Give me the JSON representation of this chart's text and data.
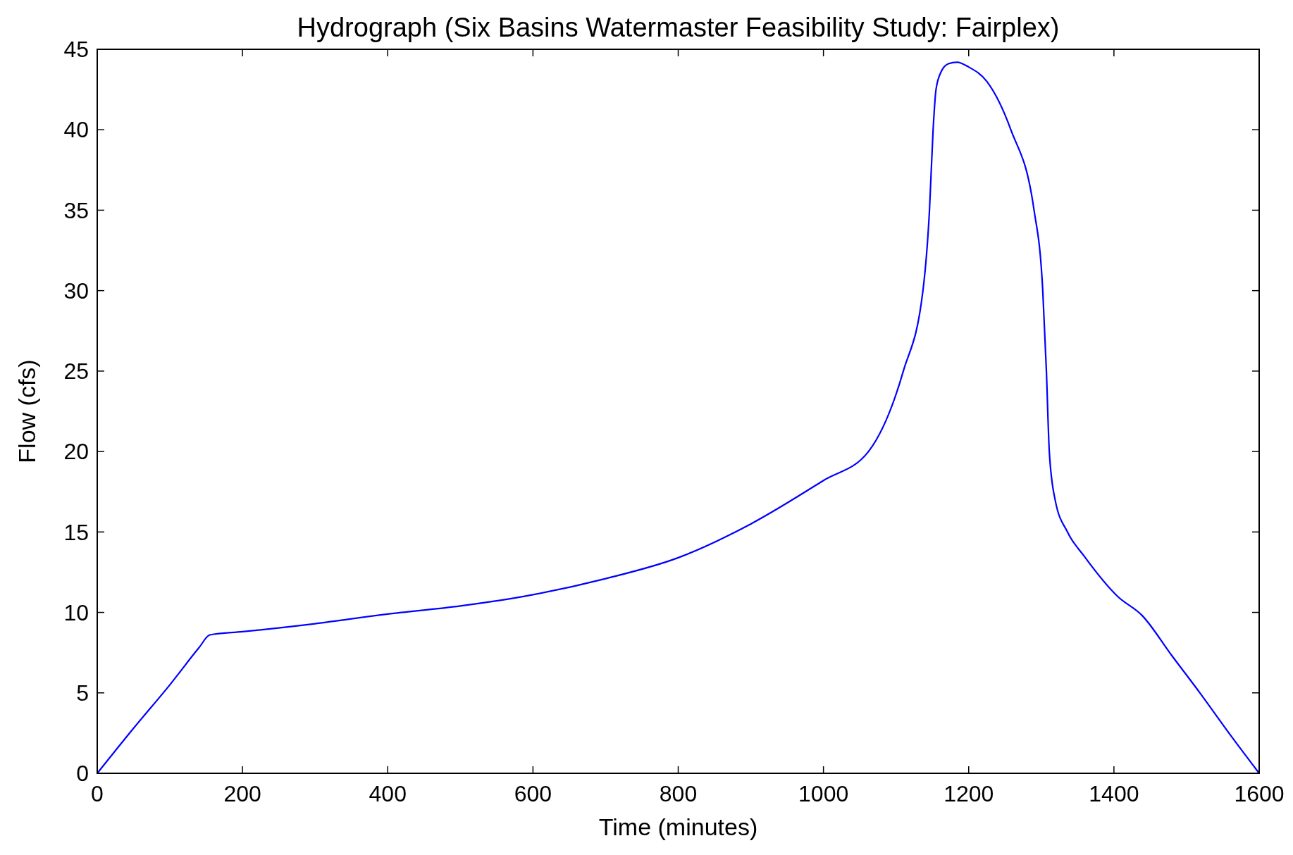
{
  "chart_data": {
    "type": "line",
    "title": "Hydrograph (Six Basins Watermaster Feasibility Study: Fairplex)",
    "xlabel": "Time (minutes)",
    "ylabel": "Flow (cfs)",
    "x": [
      0,
      50,
      100,
      140,
      155,
      200,
      300,
      400,
      500,
      600,
      700,
      800,
      900,
      1000,
      1062,
      1110,
      1137,
      1146,
      1151,
      1155,
      1162,
      1172,
      1184,
      1200,
      1225,
      1258,
      1290,
      1302,
      1307,
      1311,
      1319,
      1336,
      1359,
      1405,
      1439,
      1480,
      1520,
      1560,
      1600
    ],
    "series": [
      {
        "color": "#0000ff",
        "values": [
          0,
          2.8,
          5.5,
          7.8,
          8.6,
          8.8,
          9.3,
          9.9,
          10.4,
          11.1,
          12.1,
          13.4,
          15.5,
          18.2,
          20,
          25,
          30,
          35,
          40,
          42.5,
          43.6,
          44.1,
          44.2,
          43.9,
          43,
          40,
          35,
          30,
          25,
          20,
          17,
          15,
          13.5,
          11,
          9.8,
          7.3,
          4.9,
          2.4,
          0
        ]
      }
    ],
    "xlim": [
      0,
      1600
    ],
    "ylim": [
      0,
      45
    ],
    "xticks": [
      0,
      200,
      400,
      600,
      800,
      1000,
      1200,
      1400,
      1600
    ],
    "yticks": [
      0,
      5,
      10,
      15,
      20,
      25,
      30,
      35,
      40,
      45
    ],
    "grid": false
  }
}
